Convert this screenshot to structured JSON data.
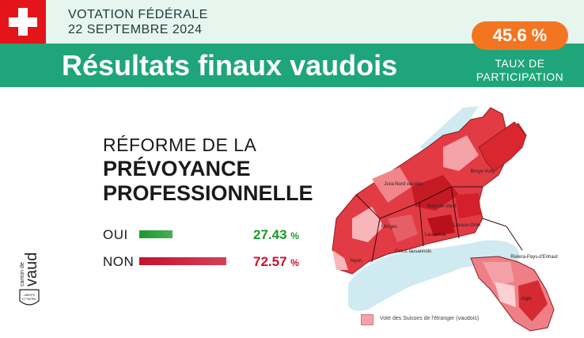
{
  "header": {
    "vote_line1": "VOTATION FÉDÉRALE",
    "vote_line2": "22 SEPTEMBRE 2024",
    "title": "Résultats finaux vaudois",
    "turnout_value": "45.6 %",
    "turnout_label_line1": "TAUX DE",
    "turnout_label_line2": "PARTICIPATION"
  },
  "subject": {
    "line1": "RÉFORME DE LA",
    "line2": "PRÉVOYANCE",
    "line3": "PROFESSIONNELLE"
  },
  "results": [
    {
      "label": "OUI",
      "value": "27.43",
      "unit": "%",
      "share": 0.2743,
      "color": "#1a9a2b"
    },
    {
      "label": "NON",
      "value": "72.57",
      "unit": "%",
      "share": 0.7257,
      "color": "#c8102e"
    }
  ],
  "logo": {
    "text": "canton de vaud",
    "motto_line1": "LIBERTÉ",
    "motto_line2": "ET PATRIE"
  },
  "map": {
    "labels": [
      "Broye-Vully",
      "Jura-Nord vaudois",
      "Gros-de-Vaud",
      "Lavaux-Oron",
      "Morges",
      "Lausanne",
      "Ouest lausannois",
      "Nyon",
      "Riviera-Pays-d'Enhaut",
      "Aigle"
    ],
    "legend": "Vote des Suisses de l'étranger (vaudois)"
  },
  "colors": {
    "flag": "#e3151b",
    "banner": "#1fa57a",
    "turnout": "#f47521",
    "top": "#e6f5ee"
  }
}
